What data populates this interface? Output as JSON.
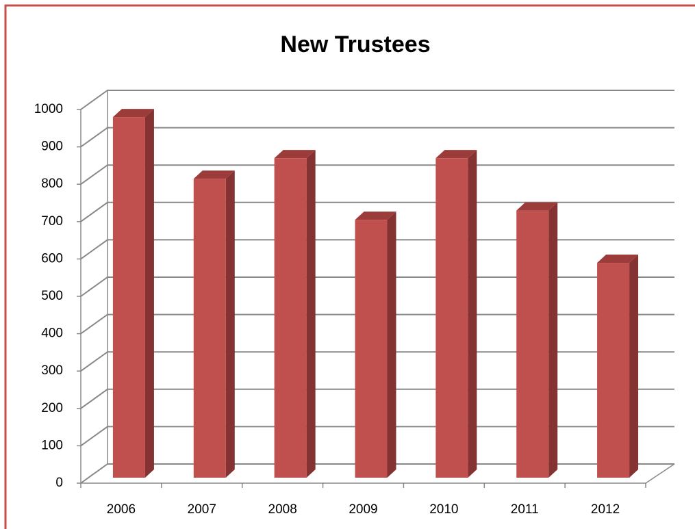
{
  "chart_data": {
    "type": "bar3d",
    "title": "New Trustees",
    "categories": [
      "2006",
      "2007",
      "2008",
      "2009",
      "2010",
      "2011",
      "2012"
    ],
    "values": [
      965,
      800,
      855,
      690,
      855,
      715,
      575
    ],
    "color": "#c0504d",
    "ylim": [
      0,
      1000
    ],
    "yticks": [
      0,
      100,
      200,
      300,
      400,
      500,
      600,
      700,
      800,
      900,
      1000
    ],
    "grid": true
  }
}
